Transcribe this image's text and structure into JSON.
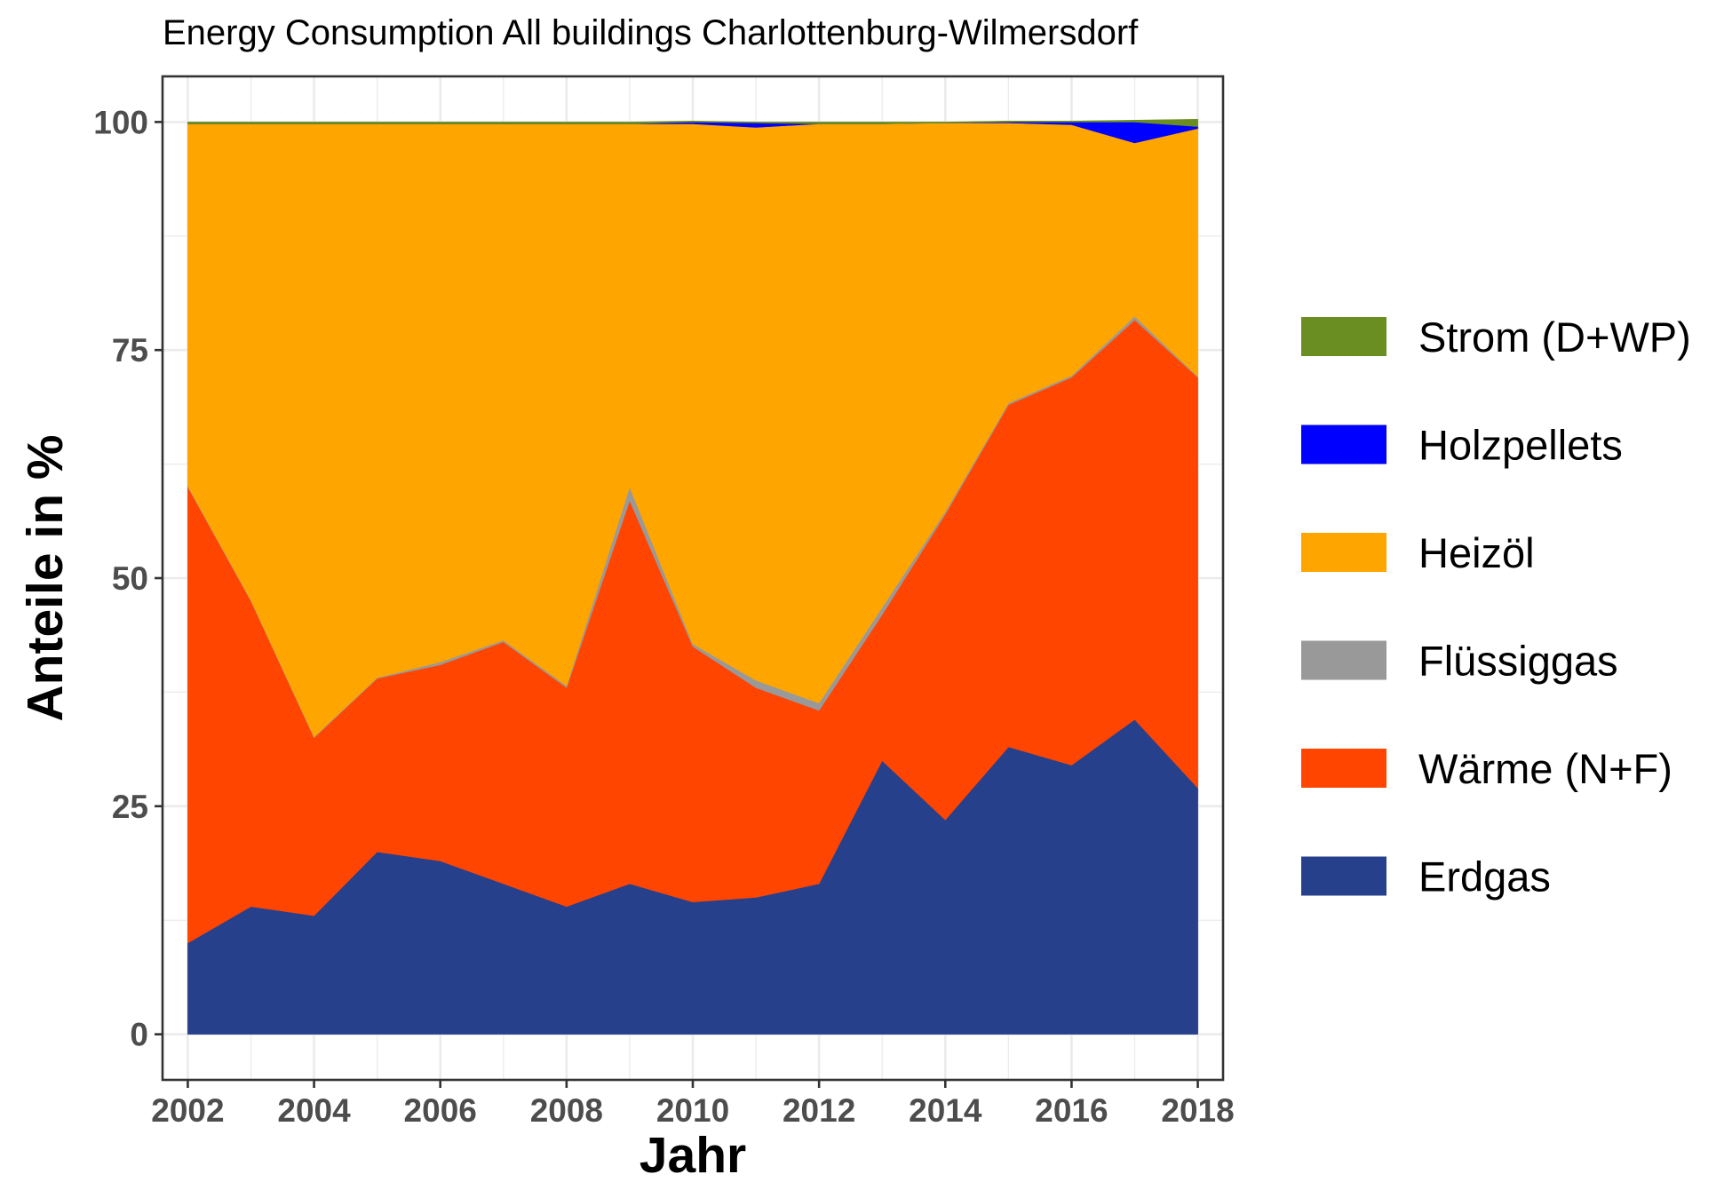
{
  "chart_data": {
    "type": "area",
    "stacked": true,
    "title": "Energy Consumption All buildings Charlottenburg-Wilmersdorf",
    "xlabel": "Jahr",
    "ylabel": "Anteile in %",
    "x": [
      2002,
      2003,
      2004,
      2005,
      2006,
      2007,
      2008,
      2009,
      2010,
      2011,
      2012,
      2013,
      2014,
      2015,
      2016,
      2017,
      2018
    ],
    "xlim": [
      2001.6,
      2018.4
    ],
    "ylim": [
      -5,
      105
    ],
    "x_ticks": [
      2002,
      2004,
      2006,
      2008,
      2010,
      2012,
      2014,
      2016,
      2018
    ],
    "y_ticks": [
      0,
      25,
      50,
      75,
      100
    ],
    "x_tick_labels": [
      "2002",
      "2004",
      "2006",
      "2008",
      "2010",
      "2012",
      "2014",
      "2016",
      "2018"
    ],
    "y_tick_labels": [
      "0",
      "25",
      "50",
      "75",
      "100"
    ],
    "grid": true,
    "legend_position": "right",
    "series": [
      {
        "name": "Erdgas",
        "color": "#27408b",
        "values": [
          10.0,
          14.0,
          13.0,
          20.0,
          19.0,
          16.5,
          14.0,
          16.5,
          14.5,
          15.0,
          16.5,
          30.0,
          23.5,
          31.5,
          29.5,
          34.5,
          27.0
        ]
      },
      {
        "name": "Wärme (N+F)",
        "color": "#ff4500",
        "values": [
          50.0,
          33.5,
          19.5,
          19.0,
          21.5,
          26.5,
          24.0,
          42.0,
          28.0,
          23.0,
          19.0,
          16.0,
          33.5,
          37.5,
          42.5,
          43.8,
          45.0
        ]
      },
      {
        "name": "Flüssiggas",
        "color": "#999999",
        "values": [
          0.1,
          0.1,
          0.1,
          0.1,
          0.3,
          0.2,
          0.2,
          1.5,
          0.3,
          0.8,
          0.8,
          0.8,
          0.3,
          0.2,
          0.2,
          0.4,
          0.1
        ]
      },
      {
        "name": "Heizöl",
        "color": "#ffa500",
        "values": [
          39.7,
          52.2,
          67.2,
          60.7,
          59.0,
          56.6,
          61.6,
          39.8,
          57.0,
          60.6,
          63.5,
          53.0,
          42.6,
          30.7,
          27.5,
          19.0,
          27.2
        ]
      },
      {
        "name": "Holzpellets",
        "color": "#0000ff",
        "values": [
          0.0,
          0.0,
          0.0,
          0.0,
          0.0,
          0.0,
          0.0,
          0.0,
          0.2,
          0.5,
          0.0,
          0.0,
          0.0,
          0.1,
          0.3,
          2.3,
          0.2
        ]
      },
      {
        "name": "Strom (D+WP)",
        "color": "#6b8e23",
        "values": [
          0.2,
          0.2,
          0.2,
          0.2,
          0.2,
          0.2,
          0.2,
          0.2,
          0.1,
          0.1,
          0.2,
          0.2,
          0.1,
          0.1,
          0.1,
          0.2,
          0.8
        ]
      }
    ],
    "legend_order": [
      "Strom (D+WP)",
      "Holzpellets",
      "Heizöl",
      "Flüssiggas",
      "Wärme (N+F)",
      "Erdgas"
    ]
  }
}
